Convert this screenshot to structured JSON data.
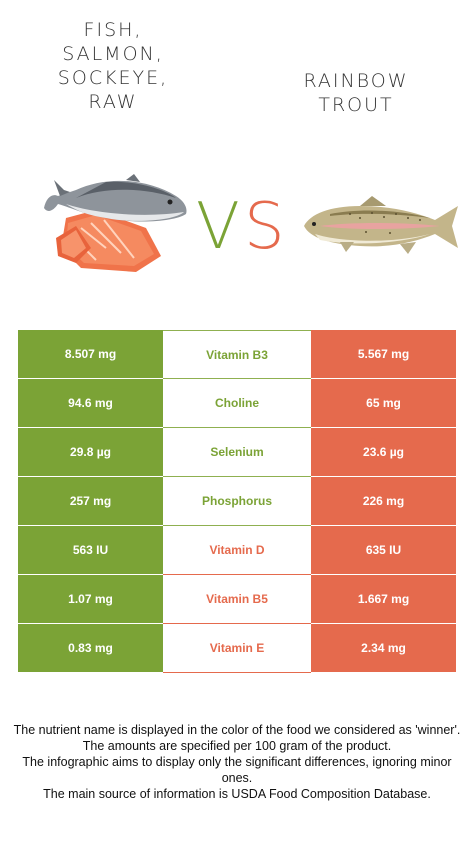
{
  "foods": {
    "left": {
      "name": "FISH,\nSALMON,\nSOCKEYE,\nRAW",
      "image_icon": "salmon-icon",
      "color": "#7ba336"
    },
    "right": {
      "name": "RAINBOW\nTROUT",
      "image_icon": "trout-icon",
      "color": "#e56a4d"
    }
  },
  "vs": {
    "v": "V",
    "s": "S"
  },
  "rows": [
    {
      "left": "8.507 mg",
      "nutrient": "Vitamin B3",
      "right": "5.567 mg",
      "winner": "left"
    },
    {
      "left": "94.6 mg",
      "nutrient": "Choline",
      "right": "65 mg",
      "winner": "left"
    },
    {
      "left": "29.8 µg",
      "nutrient": "Selenium",
      "right": "23.6 µg",
      "winner": "left"
    },
    {
      "left": "257 mg",
      "nutrient": "Phosphorus",
      "right": "226 mg",
      "winner": "left"
    },
    {
      "left": "563 IU",
      "nutrient": "Vitamin D",
      "right": "635 IU",
      "winner": "right"
    },
    {
      "left": "1.07 mg",
      "nutrient": "Vitamin B5",
      "right": "1.667 mg",
      "winner": "right"
    },
    {
      "left": "0.83 mg",
      "nutrient": "Vitamin E",
      "right": "2.34 mg",
      "winner": "right"
    }
  ],
  "footnote": {
    "line1": "The nutrient name is displayed in the color of the food we considered as 'winner'.",
    "line2": "The amounts are specified per 100 gram of the product.",
    "line3": "The infographic aims to display only the significant differences, ignoring minor ones.",
    "line4": "The main source of information is USDA Food Composition Database."
  }
}
